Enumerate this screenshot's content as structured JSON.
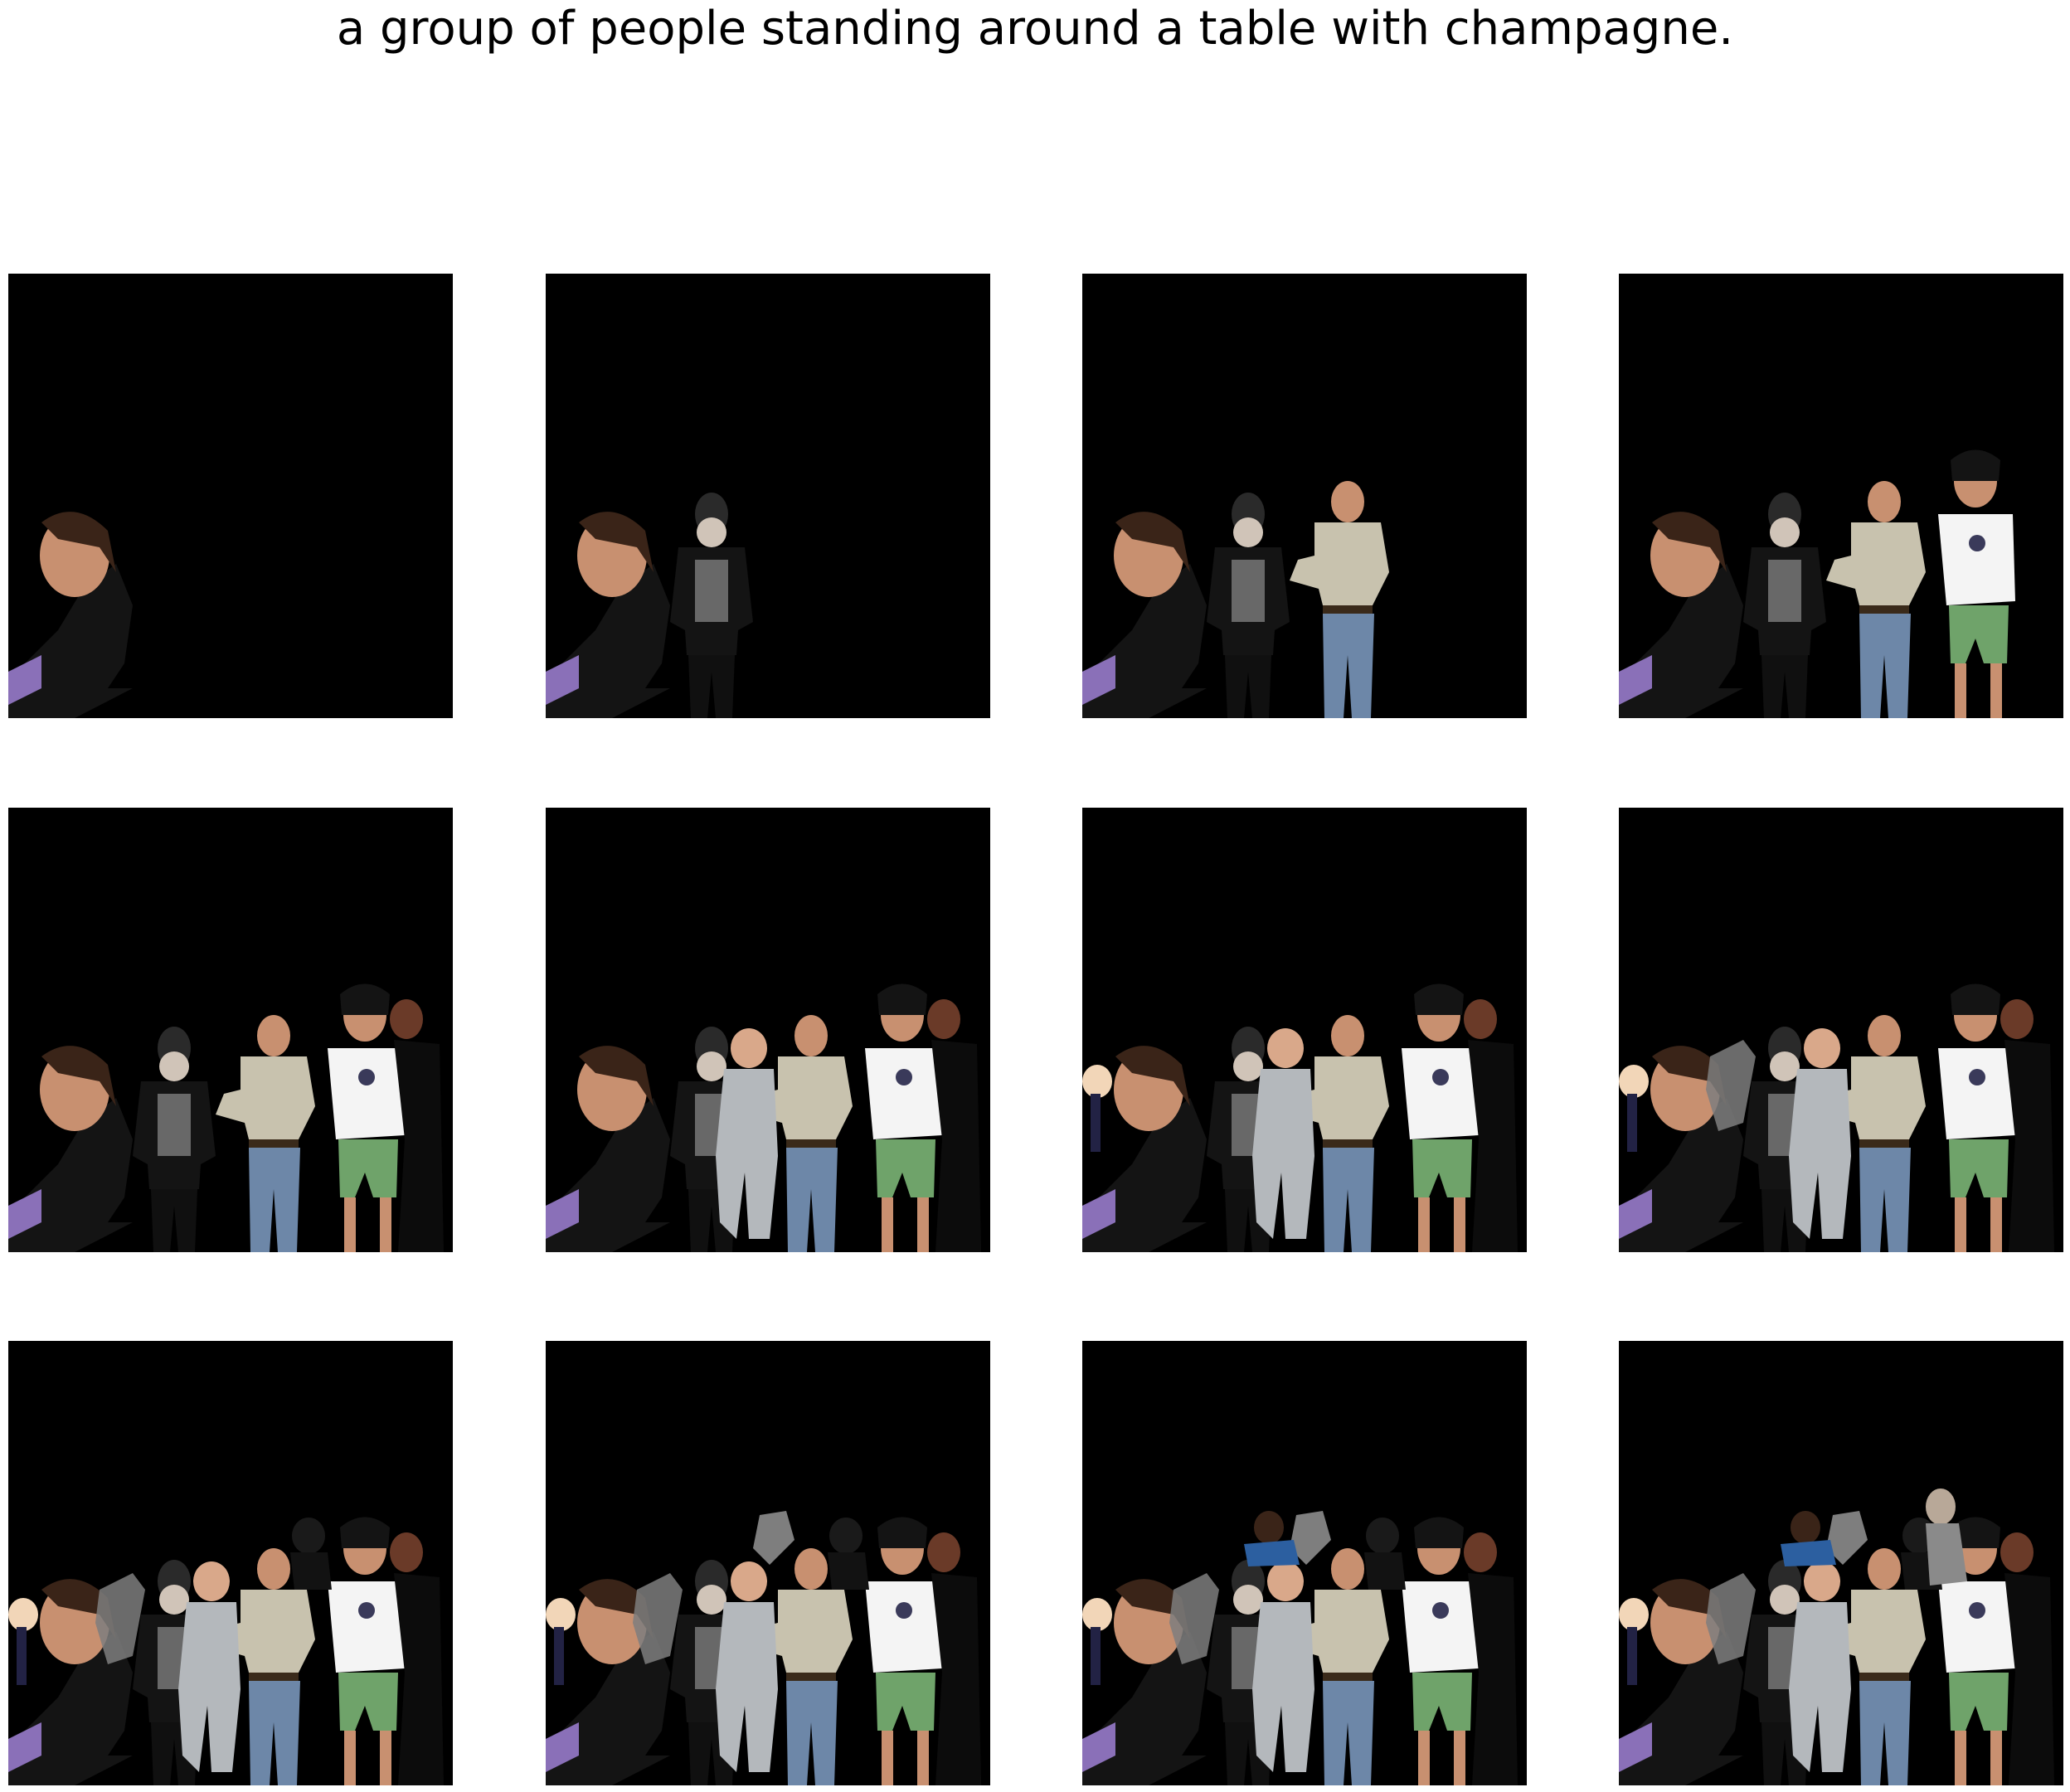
{
  "figure": {
    "caption": "a group of people standing around a table with champagne."
  },
  "panels": [
    {
      "index": 1,
      "figures_shown": 1
    },
    {
      "index": 2,
      "figures_shown": 2
    },
    {
      "index": 3,
      "figures_shown": 3
    },
    {
      "index": 4,
      "figures_shown": 4
    },
    {
      "index": 5,
      "figures_shown": 5
    },
    {
      "index": 6,
      "figures_shown": 6
    },
    {
      "index": 7,
      "figures_shown": 7
    },
    {
      "index": 8,
      "figures_shown": 8
    },
    {
      "index": 9,
      "figures_shown": 9
    },
    {
      "index": 10,
      "figures_shown": 10
    },
    {
      "index": 11,
      "figures_shown": 11
    },
    {
      "index": 12,
      "figures_shown": 12
    }
  ],
  "colors": {
    "background": "#000000",
    "page": "#ffffff",
    "skin": "#c89070",
    "dark_clothing": "#141414",
    "khaki_shirt": "#c8c2ae",
    "white_shirt": "#f4f4f4",
    "jeans": "#6d87a8",
    "plaid": "#6fa36a",
    "grey_jacket": "#b4b8bc",
    "blue_jacket": "#2c5fa0"
  }
}
